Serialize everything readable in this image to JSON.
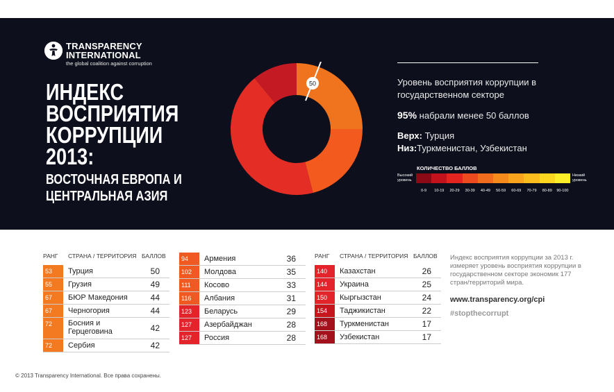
{
  "brand": {
    "name_line1": "TRANSPARENCY",
    "name_line2": "INTERNATIONAL",
    "tagline": "the global coalition against corruption"
  },
  "title": {
    "line1": "ИНДЕКС",
    "line2": "ВОСПРИЯТИЯ",
    "line3": "КОРРУПЦИИ",
    "line4": "2013:",
    "sub1": "ВОСТОЧНАЯ ЕВРОПА И",
    "sub2": "ЦЕНТРАЛЬНАЯ АЗИЯ"
  },
  "donut": {
    "marker_label": "50",
    "segments": [
      {
        "fraction": 0.25,
        "color": "#f0731d"
      },
      {
        "fraction": 0.21,
        "color": "#f25a1e"
      },
      {
        "fraction": 0.43,
        "color": "#e42d25"
      },
      {
        "fraction": 0.11,
        "color": "#c41a24"
      }
    ]
  },
  "info": {
    "description": "Уровень восприятия коррупции в государственном секторе",
    "stat_value": "95%",
    "stat_text": "набрали менее 50 баллов",
    "top_label": "Верх:",
    "top_value": "Турция",
    "bottom_label": "Низ:",
    "bottom_value": "Туркменистан, Узбекистан"
  },
  "scale": {
    "title": "КОЛИЧЕСТВО БАЛЛОВ",
    "high_label_1": "Высокий",
    "high_label_2": "уровень",
    "low_label_1": "Низкий",
    "low_label_2": "уровень",
    "ranges": [
      "0-9",
      "10-19",
      "20-29",
      "30-39",
      "40-49",
      "50-59",
      "60-69",
      "70-79",
      "80-89",
      "90-100"
    ],
    "colors": [
      "#8b0a16",
      "#c2131d",
      "#e4241f",
      "#ee4a1f",
      "#f26c1d",
      "#f68b1b",
      "#f9a41c",
      "#fbbd1d",
      "#fcd61f",
      "#fdee2a"
    ]
  },
  "headers": {
    "rank": "РАНГ",
    "country": "СТРАНА / ТЕРРИТОРИЯ",
    "score": "БАЛЛОВ"
  },
  "table1": [
    {
      "rank": "53",
      "country": "Турция",
      "score": "50",
      "color": "#f37a21"
    },
    {
      "rank": "55",
      "country": "Грузия",
      "score": "49",
      "color": "#f37a21"
    },
    {
      "rank": "67",
      "country": "БЮР Македония",
      "score": "44",
      "color": "#f37a21"
    },
    {
      "rank": "67",
      "country": "Черногория",
      "score": "44",
      "color": "#f37a21"
    },
    {
      "rank": "72",
      "country_line1": "Босния и",
      "country_line2": "Герцеговина",
      "score": "42",
      "color": "#f37a21"
    },
    {
      "rank": "72",
      "country": "Сербия",
      "score": "42",
      "color": "#f37a21"
    }
  ],
  "table2": [
    {
      "rank": "94",
      "country": "Армения",
      "score": "36",
      "color": "#f05a22"
    },
    {
      "rank": "102",
      "country": "Молдова",
      "score": "35",
      "color": "#f05a22"
    },
    {
      "rank": "111",
      "country": "Косово",
      "score": "33",
      "color": "#f05a22"
    },
    {
      "rank": "116",
      "country": "Албания",
      "score": "31",
      "color": "#f05a22"
    },
    {
      "rank": "123",
      "country": "Беларусь",
      "score": "29",
      "color": "#e3242b"
    },
    {
      "rank": "127",
      "country": "Азербайджан",
      "score": "28",
      "color": "#e3242b"
    },
    {
      "rank": "127",
      "country": "Россия",
      "score": "28",
      "color": "#e3242b"
    }
  ],
  "table3": [
    {
      "rank": "140",
      "country": "Казахстан",
      "score": "26",
      "color": "#e3242b"
    },
    {
      "rank": "144",
      "country": "Украина",
      "score": "25",
      "color": "#e3242b"
    },
    {
      "rank": "150",
      "country": "Кыргызстан",
      "score": "24",
      "color": "#e3242b"
    },
    {
      "rank": "154",
      "country": "Таджикистан",
      "score": "22",
      "color": "#c4161c"
    },
    {
      "rank": "168",
      "country": "Туркменистан",
      "score": "17",
      "color": "#a3111c"
    },
    {
      "rank": "168",
      "country": "Узбекистан",
      "score": "17",
      "color": "#a3111c"
    }
  ],
  "side": {
    "description": "Индекс восприятия коррупции за 2013 г. измеряет уровень восприятия коррупции в государственном секторе экономик 177 стран/территорий мира.",
    "url": "www.transparency.org/cpi",
    "hashtag": "#stopthecorrupt"
  },
  "footer": "© 2013 Transparency International. Все права сохранены."
}
